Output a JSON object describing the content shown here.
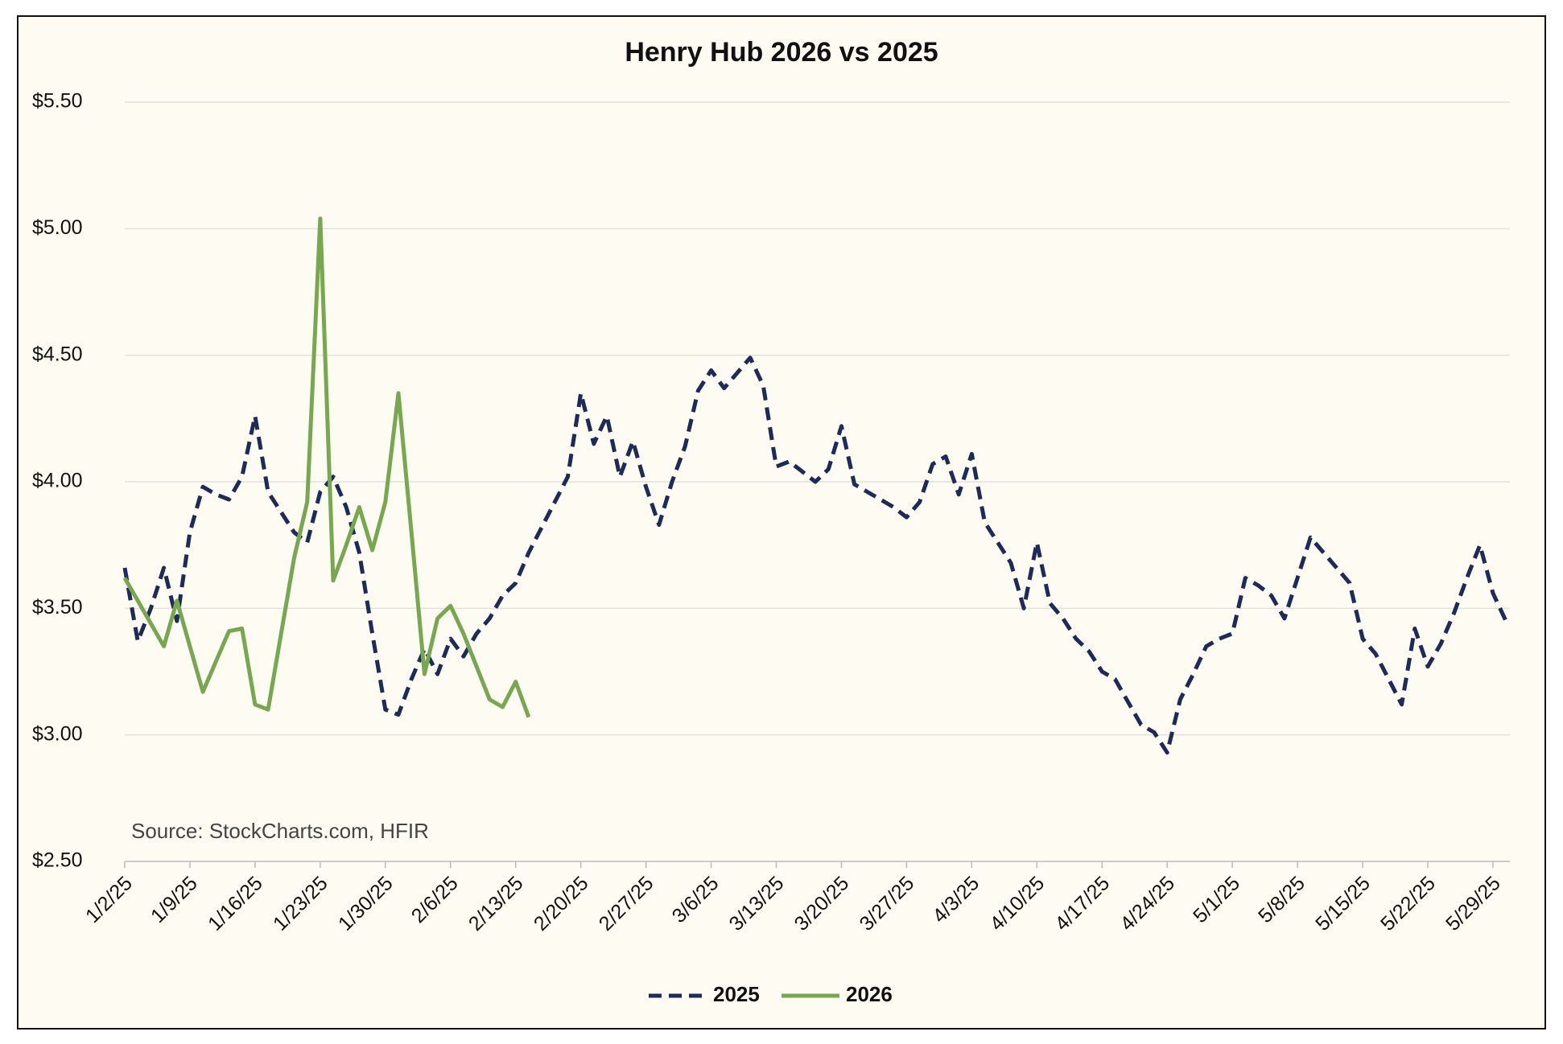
{
  "chart_data": {
    "type": "line",
    "title": "Henry Hub 2026 vs 2025",
    "annotation": "Source: StockCharts.com, HFIR",
    "categories": [
      "1/2/25",
      null,
      null,
      null,
      null,
      "1/9/25",
      null,
      null,
      null,
      null,
      "1/16/25",
      null,
      null,
      null,
      null,
      "1/23/25",
      null,
      null,
      null,
      null,
      "1/30/25",
      null,
      null,
      null,
      null,
      "2/6/25",
      null,
      null,
      null,
      null,
      "2/13/25",
      null,
      null,
      null,
      null,
      "2/20/25",
      null,
      null,
      null,
      null,
      "2/27/25",
      null,
      null,
      null,
      null,
      "3/6/25",
      null,
      null,
      null,
      null,
      "3/13/25",
      null,
      null,
      null,
      null,
      "3/20/25",
      null,
      null,
      null,
      null,
      "3/27/25",
      null,
      null,
      null,
      null,
      "4/3/25",
      null,
      null,
      null,
      null,
      "4/10/25",
      null,
      null,
      null,
      null,
      "4/17/25",
      null,
      null,
      null,
      null,
      "4/24/25",
      null,
      null,
      null,
      null,
      "5/1/25",
      null,
      null,
      null,
      null,
      "5/8/25",
      null,
      null,
      null,
      null,
      "5/15/25",
      null,
      null,
      null,
      null,
      "5/22/25",
      null,
      null,
      null,
      null,
      "5/29/25",
      null
    ],
    "series": [
      {
        "name": "2025",
        "color": "#1c2b5a",
        "style": "dashed",
        "values": [
          3.66,
          3.37,
          3.5,
          3.66,
          3.45,
          3.8,
          3.98,
          3.95,
          3.93,
          4.02,
          4.26,
          3.96,
          3.88,
          3.8,
          3.76,
          3.96,
          4.02,
          3.9,
          3.72,
          3.4,
          3.1,
          3.08,
          3.22,
          3.34,
          3.24,
          3.38,
          3.31,
          3.4,
          3.46,
          3.55,
          3.6,
          3.72,
          3.82,
          3.92,
          4.02,
          4.35,
          4.15,
          4.26,
          4.02,
          4.16,
          3.98,
          3.83,
          4.0,
          4.14,
          4.36,
          4.44,
          4.37,
          4.43,
          4.49,
          4.38,
          4.06,
          4.08,
          4.04,
          4.0,
          4.05,
          4.22,
          3.99,
          3.96,
          3.93,
          3.9,
          3.86,
          3.92,
          4.07,
          4.1,
          3.95,
          4.11,
          3.84,
          3.76,
          3.68,
          3.5,
          3.76,
          3.52,
          3.46,
          3.38,
          3.33,
          3.25,
          3.22,
          3.13,
          3.04,
          3.01,
          2.93,
          3.14,
          3.24,
          3.35,
          3.38,
          3.4,
          3.62,
          3.59,
          3.55,
          3.46,
          3.62,
          3.78,
          3.72,
          3.66,
          3.6,
          3.38,
          3.32,
          3.22,
          3.12,
          3.42,
          3.27,
          3.36,
          3.48,
          3.62,
          3.75,
          3.56,
          3.45
        ]
      },
      {
        "name": "2026",
        "color": "#77a850",
        "style": "solid",
        "values": [
          3.62,
          3.53,
          3.44,
          3.35,
          3.53,
          3.35,
          3.17,
          3.29,
          3.41,
          3.42,
          3.12,
          3.1,
          3.4,
          3.7,
          3.92,
          5.04,
          3.61,
          3.75,
          3.9,
          3.73,
          3.92,
          4.35,
          3.8,
          3.24,
          3.46,
          3.51,
          3.4,
          3.27,
          3.14,
          3.11,
          3.21,
          3.07,
          null,
          null,
          null,
          null,
          null,
          null,
          null,
          null,
          null,
          null,
          null,
          null,
          null,
          null,
          null,
          null,
          null,
          null,
          null,
          null,
          null,
          null,
          null,
          null,
          null,
          null,
          null,
          null,
          null,
          null,
          null,
          null,
          null,
          null,
          null,
          null,
          null,
          null,
          null,
          null,
          null,
          null,
          null,
          null,
          null,
          null,
          null,
          null,
          null,
          null,
          null,
          null,
          null,
          null,
          null,
          null,
          null,
          null,
          null,
          null,
          null,
          null,
          null,
          null,
          null,
          null,
          null,
          null,
          null,
          null,
          null,
          null,
          null,
          null,
          null
        ]
      }
    ],
    "ylim": [
      2.5,
      5.5
    ],
    "yticks": [
      {
        "value": 2.5,
        "label": "$2.50"
      },
      {
        "value": 3,
        "label": "$3.00"
      },
      {
        "value": 3.5,
        "label": "$3.50"
      },
      {
        "value": 4,
        "label": "$4.00"
      },
      {
        "value": 4.5,
        "label": "$4.50"
      },
      {
        "value": 5,
        "label": "$5.00"
      },
      {
        "value": 5.5,
        "label": "$5.50"
      }
    ],
    "grid": true,
    "legend": "bottom"
  }
}
